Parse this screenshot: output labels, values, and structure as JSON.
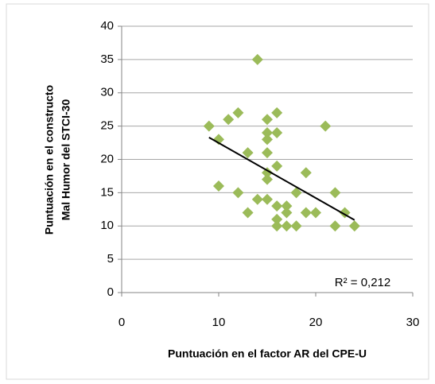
{
  "chart_data": {
    "type": "scatter",
    "x_label": "Puntuación en el factor AR del CPE-U",
    "y_label": [
      "Puntuación en el constructo",
      "Mal Humor del STCI-30"
    ],
    "annotation": "R² = 0,212",
    "series": [
      {
        "color": "#9bbb59",
        "x": [
          9,
          10,
          10,
          11,
          12,
          12,
          13,
          13,
          14,
          14,
          15,
          15,
          15,
          15,
          15,
          15,
          15,
          16,
          16,
          16,
          16,
          16,
          16,
          17,
          17,
          17,
          18,
          18,
          19,
          19,
          20,
          21,
          22,
          22,
          23,
          24
        ],
        "values": [
          25,
          23,
          16,
          26,
          27,
          15,
          21,
          12,
          35,
          14,
          26,
          24,
          23,
          21,
          18,
          17,
          14,
          27,
          24,
          19,
          13,
          11,
          10,
          13,
          12,
          10,
          15,
          10,
          18,
          12,
          12,
          25,
          15,
          10,
          12,
          10
        ]
      }
    ],
    "trendline": {
      "x": [
        9,
        24
      ],
      "values": [
        23.3,
        10.9
      ],
      "color": "#000000"
    },
    "xlim": [
      0,
      30
    ],
    "xticks": [
      0,
      10,
      20,
      30
    ],
    "ylim": [
      0,
      40
    ],
    "yticks": [
      0,
      5,
      10,
      15,
      20,
      25,
      30,
      35,
      40
    ],
    "grid": true
  }
}
